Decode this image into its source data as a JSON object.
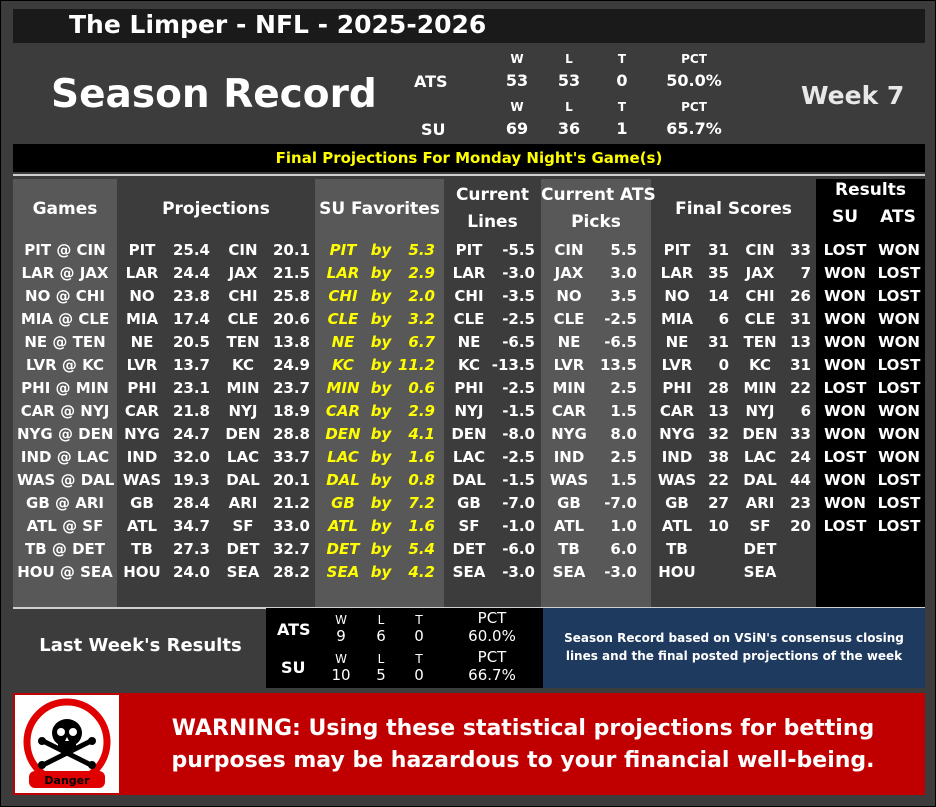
{
  "title": "The Limper - NFL - 2025-2026",
  "record": {
    "heading": "Season Record",
    "week": "Week 7",
    "col_headers": [
      "W",
      "L",
      "T",
      "PCT"
    ],
    "ats": {
      "label": "ATS",
      "w": "53",
      "l": "53",
      "t": "0",
      "pct": "50.0%"
    },
    "su": {
      "label": "SU",
      "w": "69",
      "l": "36",
      "t": "1",
      "pct": "65.7%"
    }
  },
  "projections_banner": "Final Projections For Monday Night's Game(s)",
  "headers": {
    "games": "Games",
    "projections": "Projections",
    "su_favorites": "SU Favorites",
    "current_lines_1": "Current",
    "current_lines_2": "Lines",
    "current_ats_1": "Current ATS",
    "current_ats_2": "Picks",
    "final_scores": "Final Scores",
    "results": "Results",
    "results_su": "SU",
    "results_ats": "ATS"
  },
  "games": [
    {
      "game": "PIT @ CIN",
      "p1t": "PIT",
      "p1": "25.4",
      "p2t": "CIN",
      "p2": "20.1",
      "fav": "PIT",
      "by": "by",
      "margin": "5.3",
      "lt": "PIT",
      "line": "-5.5",
      "pt": "CIN",
      "pick": "5.5",
      "f1t": "PIT",
      "f1": "31",
      "f2t": "CIN",
      "f2": "33",
      "su": "LOST",
      "ats": "WON"
    },
    {
      "game": "LAR @ JAX",
      "p1t": "LAR",
      "p1": "24.4",
      "p2t": "JAX",
      "p2": "21.5",
      "fav": "LAR",
      "by": "by",
      "margin": "2.9",
      "lt": "LAR",
      "line": "-3.0",
      "pt": "JAX",
      "pick": "3.0",
      "f1t": "LAR",
      "f1": "35",
      "f2t": "JAX",
      "f2": "7",
      "su": "WON",
      "ats": "LOST"
    },
    {
      "game": "NO @ CHI",
      "p1t": "NO",
      "p1": "23.8",
      "p2t": "CHI",
      "p2": "25.8",
      "fav": "CHI",
      "by": "by",
      "margin": "2.0",
      "lt": "CHI",
      "line": "-3.5",
      "pt": "NO",
      "pick": "3.5",
      "f1t": "NO",
      "f1": "14",
      "f2t": "CHI",
      "f2": "26",
      "su": "WON",
      "ats": "LOST"
    },
    {
      "game": "MIA @ CLE",
      "p1t": "MIA",
      "p1": "17.4",
      "p2t": "CLE",
      "p2": "20.6",
      "fav": "CLE",
      "by": "by",
      "margin": "3.2",
      "lt": "CLE",
      "line": "-2.5",
      "pt": "CLE",
      "pick": "-2.5",
      "f1t": "MIA",
      "f1": "6",
      "f2t": "CLE",
      "f2": "31",
      "su": "WON",
      "ats": "WON"
    },
    {
      "game": "NE @ TEN",
      "p1t": "NE",
      "p1": "20.5",
      "p2t": "TEN",
      "p2": "13.8",
      "fav": "NE",
      "by": "by",
      "margin": "6.7",
      "lt": "NE",
      "line": "-6.5",
      "pt": "NE",
      "pick": "-6.5",
      "f1t": "NE",
      "f1": "31",
      "f2t": "TEN",
      "f2": "13",
      "su": "WON",
      "ats": "WON"
    },
    {
      "game": "LVR @ KC",
      "p1t": "LVR",
      "p1": "13.7",
      "p2t": "KC",
      "p2": "24.9",
      "fav": "KC",
      "by": "by",
      "margin": "11.2",
      "lt": "KC",
      "line": "-13.5",
      "pt": "LVR",
      "pick": "13.5",
      "f1t": "LVR",
      "f1": "0",
      "f2t": "KC",
      "f2": "31",
      "su": "WON",
      "ats": "LOST"
    },
    {
      "game": "PHI @ MIN",
      "p1t": "PHI",
      "p1": "23.1",
      "p2t": "MIN",
      "p2": "23.7",
      "fav": "MIN",
      "by": "by",
      "margin": "0.6",
      "lt": "PHI",
      "line": "-2.5",
      "pt": "MIN",
      "pick": "2.5",
      "f1t": "PHI",
      "f1": "28",
      "f2t": "MIN",
      "f2": "22",
      "su": "LOST",
      "ats": "LOST"
    },
    {
      "game": "CAR @ NYJ",
      "p1t": "CAR",
      "p1": "21.8",
      "p2t": "NYJ",
      "p2": "18.9",
      "fav": "CAR",
      "by": "by",
      "margin": "2.9",
      "lt": "NYJ",
      "line": "-1.5",
      "pt": "CAR",
      "pick": "1.5",
      "f1t": "CAR",
      "f1": "13",
      "f2t": "NYJ",
      "f2": "6",
      "su": "WON",
      "ats": "WON"
    },
    {
      "game": "NYG @ DEN",
      "p1t": "NYG",
      "p1": "24.7",
      "p2t": "DEN",
      "p2": "28.8",
      "fav": "DEN",
      "by": "by",
      "margin": "4.1",
      "lt": "DEN",
      "line": "-8.0",
      "pt": "NYG",
      "pick": "8.0",
      "f1t": "NYG",
      "f1": "32",
      "f2t": "DEN",
      "f2": "33",
      "su": "WON",
      "ats": "WON"
    },
    {
      "game": "IND @ LAC",
      "p1t": "IND",
      "p1": "32.0",
      "p2t": "LAC",
      "p2": "33.7",
      "fav": "LAC",
      "by": "by",
      "margin": "1.6",
      "lt": "LAC",
      "line": "-2.5",
      "pt": "IND",
      "pick": "2.5",
      "f1t": "IND",
      "f1": "38",
      "f2t": "LAC",
      "f2": "24",
      "su": "LOST",
      "ats": "WON"
    },
    {
      "game": "WAS @ DAL",
      "p1t": "WAS",
      "p1": "19.3",
      "p2t": "DAL",
      "p2": "20.1",
      "fav": "DAL",
      "by": "by",
      "margin": "0.8",
      "lt": "DAL",
      "line": "-1.5",
      "pt": "WAS",
      "pick": "1.5",
      "f1t": "WAS",
      "f1": "22",
      "f2t": "DAL",
      "f2": "44",
      "su": "WON",
      "ats": "LOST"
    },
    {
      "game": "GB @ ARI",
      "p1t": "GB",
      "p1": "28.4",
      "p2t": "ARI",
      "p2": "21.2",
      "fav": "GB",
      "by": "by",
      "margin": "7.2",
      "lt": "GB",
      "line": "-7.0",
      "pt": "GB",
      "pick": "-7.0",
      "f1t": "GB",
      "f1": "27",
      "f2t": "ARI",
      "f2": "23",
      "su": "WON",
      "ats": "LOST"
    },
    {
      "game": "ATL @ SF",
      "p1t": "ATL",
      "p1": "34.7",
      "p2t": "SF",
      "p2": "33.0",
      "fav": "ATL",
      "by": "by",
      "margin": "1.6",
      "lt": "SF",
      "line": "-1.0",
      "pt": "ATL",
      "pick": "1.0",
      "f1t": "ATL",
      "f1": "10",
      "f2t": "SF",
      "f2": "20",
      "su": "LOST",
      "ats": "LOST"
    },
    {
      "game": "TB @ DET",
      "p1t": "TB",
      "p1": "27.3",
      "p2t": "DET",
      "p2": "32.7",
      "fav": "DET",
      "by": "by",
      "margin": "5.4",
      "lt": "DET",
      "line": "-6.0",
      "pt": "TB",
      "pick": "6.0",
      "f1t": "TB",
      "f1": "",
      "f2t": "DET",
      "f2": "",
      "su": "",
      "ats": ""
    },
    {
      "game": "HOU @ SEA",
      "p1t": "HOU",
      "p1": "24.0",
      "p2t": "SEA",
      "p2": "28.2",
      "fav": "SEA",
      "by": "by",
      "margin": "4.2",
      "lt": "SEA",
      "line": "-3.0",
      "pt": "SEA",
      "pick": "-3.0",
      "f1t": "HOU",
      "f1": "",
      "f2t": "SEA",
      "f2": "",
      "su": "",
      "ats": ""
    }
  ],
  "last_week": {
    "label": "Last Week's Results",
    "ats": {
      "label": "ATS",
      "w_h": "W",
      "l_h": "L",
      "t_h": "T",
      "pct_h": "PCT",
      "w": "9",
      "l": "6",
      "t": "0",
      "pct": "60.0%"
    },
    "su": {
      "label": "SU",
      "w_h": "W",
      "l_h": "L",
      "t_h": "T",
      "pct_h": "PCT",
      "w": "10",
      "l": "5",
      "t": "0",
      "pct": "66.7%"
    }
  },
  "note": "Season Record based on VSiN's consensus closing lines and the final posted projections of the week",
  "warning": "WARNING: Using these statistical projections for betting purposes may be hazardous to your financial well-being.",
  "danger_label": "Danger",
  "icons": {
    "danger": "skull-crossbones-icon"
  },
  "colors": {
    "background": "#3c3c3c",
    "panel_gray": "#585858",
    "accent_yellow": "#ffff00",
    "warning_red": "#c00000",
    "note_blue": "#1f3a5f"
  }
}
